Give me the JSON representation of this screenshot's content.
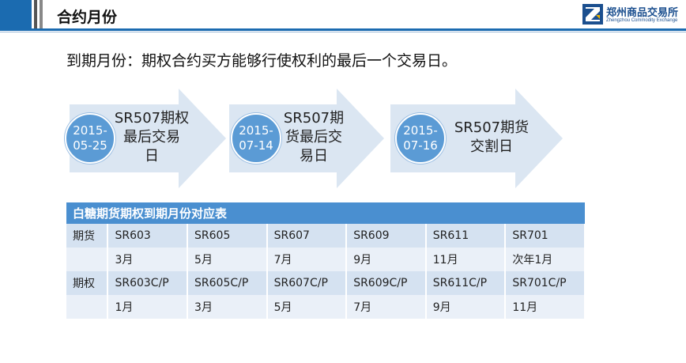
{
  "header": {
    "title": "合约月份"
  },
  "logo": {
    "cn": "郑州商品交易所",
    "en": "Zhengzhou Commodity Exchange"
  },
  "subtitle": "到期月份：期权合约买方能够行使权利的最后一个交易日。",
  "steps": [
    {
      "date_line1": "2015-",
      "date_line2": "05-25",
      "text_lines": [
        "SR507期权",
        "最后交易",
        "日"
      ]
    },
    {
      "date_line1": "2015-",
      "date_line2": "07-14",
      "text_lines": [
        "SR507期",
        "货最后交",
        "易日"
      ]
    },
    {
      "date_line1": "2015-",
      "date_line2": "07-16",
      "text_lines": [
        "SR507期货",
        "交割日"
      ]
    }
  ],
  "table": {
    "title": "白糖期货期权到期月份对应表",
    "rows": [
      [
        "期货",
        "SR603",
        "SR605",
        "SR607",
        "SR609",
        "SR611",
        "SR701"
      ],
      [
        "",
        "3月",
        "5月",
        "7月",
        "9月",
        "11月",
        "次年1月"
      ],
      [
        "期权",
        "SR603C/P",
        "SR605C/P",
        "SR607C/P",
        "SR609C/P",
        "SR611C/P",
        "SR701C/P"
      ],
      [
        "",
        "1月",
        "3月",
        "5月",
        "7月",
        "9月",
        "11月"
      ]
    ]
  },
  "colors": {
    "brand_blue": "#1b6bb0",
    "arrow_fill": "#dbe6f2",
    "circle_fill": "#5b9bd5",
    "table_header": "#4a8fd0"
  }
}
